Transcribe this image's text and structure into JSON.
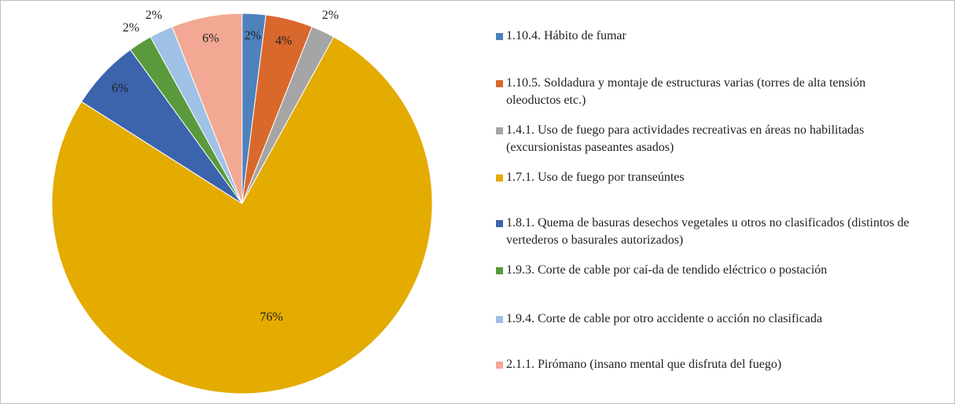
{
  "chart_data": {
    "type": "pie",
    "categories": [
      "1.10.4. Hábito de fumar",
      "1.10.5. Soldadura y montaje de estructuras varias (torres de alta tensión  oleoductos  etc.)",
      "1.4.1. Uso de fuego para actividades recreativas en áreas no habilitadas (excursionistas  paseantes  asados)",
      "1.7.1. Uso de fuego por transeúntes",
      "1.8.1. Quema de basuras  desechos vegetales u otros no clasificados (distintos de vertederos o basurales autorizados)",
      "1.9.3. Corte de cable por caí-da de tendido eléctrico o postación",
      "1.9.4. Corte de cable por otro accidente o acción no clasificada",
      "2.1.1. Pirómano (insano mental que disfruta del fuego)"
    ],
    "values": [
      2,
      4,
      2,
      76,
      6,
      2,
      2,
      6
    ],
    "value_labels": [
      "2%",
      "4%",
      "2%",
      "76%",
      "6%",
      "2%",
      "2%",
      "6%"
    ],
    "colors": [
      "#4f81bd",
      "#d9682c",
      "#a5a5a5",
      "#e4ab00",
      "#3c64ad",
      "#5a9a3c",
      "#9fc1e6",
      "#f2a893"
    ],
    "legend": "right"
  }
}
